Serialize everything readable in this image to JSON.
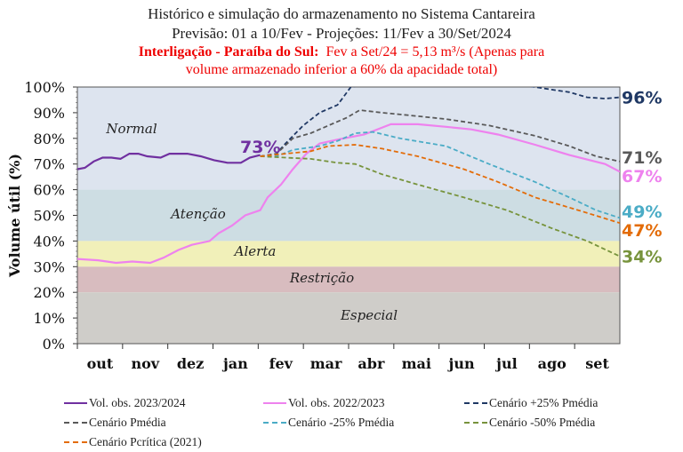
{
  "chart_data": {
    "type": "line",
    "title": "Histórico e simulação do armazenamento no Sistema Cantareira",
    "subtitle": "Previsão: 01 a 10/Fev  -  Projeções: 11/Fev a 30/Set/2024",
    "note_bold": "Interligação - Paraíba do Sul:",
    "note_text": "Fev a Set/24 = 5,13 m³/s (Apenas para",
    "note_line2": "volume armazenado inferior a 60% da apacidade total)",
    "ylabel": "Volume útil (%)",
    "xlabel": "",
    "ylim": [
      0,
      100
    ],
    "y_ticks": [
      "0%",
      "10%",
      "20%",
      "30%",
      "40%",
      "50%",
      "60%",
      "70%",
      "80%",
      "90%",
      "100%"
    ],
    "x_ticks": [
      "out",
      "nov",
      "dez",
      "jan",
      "fev",
      "mar",
      "abr",
      "mai",
      "jun",
      "jul",
      "ago",
      "set"
    ],
    "x_range": [
      "2023-10-01",
      "2024-09-30"
    ],
    "zones": [
      {
        "label": "Normal",
        "from": 60,
        "to": 100,
        "color": "#dde4ef"
      },
      {
        "label": "Atenção",
        "from": 40,
        "to": 60,
        "color": "#cddde3"
      },
      {
        "label": "Alerta",
        "from": 30,
        "to": 40,
        "color": "#f1f0b9"
      },
      {
        "label": "Restrição",
        "from": 20,
        "to": 30,
        "color": "#d8bcbf"
      },
      {
        "label": "Especial",
        "from": 0,
        "to": 20,
        "color": "#cfcdc9"
      }
    ],
    "start_label": "73%",
    "legend_position": "bottom",
    "series": [
      {
        "name": "Vol. obs. 2023/2024",
        "color": "#7030a0",
        "dash": false,
        "end_label": "",
        "points": [
          [
            "2023-10-01",
            68
          ],
          [
            "2023-10-06",
            68.5
          ],
          [
            "2023-10-12",
            71
          ],
          [
            "2023-10-18",
            72.5
          ],
          [
            "2023-10-24",
            72.5
          ],
          [
            "2023-10-30",
            72
          ],
          [
            "2023-11-05",
            74
          ],
          [
            "2023-11-11",
            74
          ],
          [
            "2023-11-17",
            73
          ],
          [
            "2023-11-26",
            72.5
          ],
          [
            "2023-12-02",
            74
          ],
          [
            "2023-12-14",
            74
          ],
          [
            "2023-12-23",
            73
          ],
          [
            "2024-01-01",
            71.5
          ],
          [
            "2024-01-10",
            70.5
          ],
          [
            "2024-01-19",
            70.5
          ],
          [
            "2024-01-25",
            72.5
          ],
          [
            "2024-02-01",
            73.5
          ]
        ]
      },
      {
        "name": "Vol. obs. 2022/2023",
        "color": "#ee82ee",
        "dash": false,
        "end_label": "67%",
        "points": [
          [
            "2023-10-01",
            33
          ],
          [
            "2023-10-15",
            32.5
          ],
          [
            "2023-10-27",
            31.5
          ],
          [
            "2023-11-07",
            32
          ],
          [
            "2023-11-19",
            31.5
          ],
          [
            "2023-11-28",
            33.5
          ],
          [
            "2023-12-08",
            36.5
          ],
          [
            "2023-12-17",
            38.5
          ],
          [
            "2023-12-29",
            40
          ],
          [
            "2024-01-04",
            43
          ],
          [
            "2024-01-13",
            46
          ],
          [
            "2024-01-22",
            50
          ],
          [
            "2024-02-01",
            52
          ],
          [
            "2024-02-06",
            57
          ],
          [
            "2024-02-15",
            62
          ],
          [
            "2024-02-23",
            68
          ],
          [
            "2024-03-03",
            74
          ],
          [
            "2024-03-12",
            78
          ],
          [
            "2024-03-24",
            79.5
          ],
          [
            "2024-04-11",
            81.5
          ],
          [
            "2024-04-29",
            85.5
          ],
          [
            "2024-05-17",
            85.5
          ],
          [
            "2024-06-05",
            84.5
          ],
          [
            "2024-06-22",
            83.5
          ],
          [
            "2024-07-10",
            81.5
          ],
          [
            "2024-08-04",
            77.5
          ],
          [
            "2024-08-27",
            73.5
          ],
          [
            "2024-09-20",
            70
          ],
          [
            "2024-09-30",
            67
          ]
        ]
      },
      {
        "name": "Cenário +25% Pmédia",
        "color": "#1f3864",
        "dash": true,
        "end_label": "96%",
        "points": [
          [
            "2024-02-01",
            73
          ],
          [
            "2024-02-12",
            74
          ],
          [
            "2024-02-18",
            78
          ],
          [
            "2024-03-01",
            85
          ],
          [
            "2024-03-12",
            90
          ],
          [
            "2024-03-24",
            93
          ],
          [
            "2024-04-02",
            100
          ],
          [
            "2024-05-15",
            104
          ],
          [
            "2024-07-01",
            103
          ],
          [
            "2024-08-04",
            100
          ],
          [
            "2024-08-15",
            99
          ],
          [
            "2024-08-27",
            98
          ],
          [
            "2024-09-08",
            96
          ],
          [
            "2024-09-20",
            95.5
          ],
          [
            "2024-09-30",
            96
          ]
        ]
      },
      {
        "name": "Cenário Pmédia",
        "color": "#595959",
        "dash": true,
        "end_label": "71%",
        "points": [
          [
            "2024-02-01",
            73
          ],
          [
            "2024-02-12",
            74
          ],
          [
            "2024-02-23",
            80
          ],
          [
            "2024-03-06",
            82
          ],
          [
            "2024-03-18",
            85
          ],
          [
            "2024-03-30",
            88
          ],
          [
            "2024-04-08",
            91
          ],
          [
            "2024-04-23",
            90
          ],
          [
            "2024-05-11",
            89
          ],
          [
            "2024-06-05",
            87.5
          ],
          [
            "2024-07-04",
            85
          ],
          [
            "2024-08-04",
            81
          ],
          [
            "2024-08-27",
            77
          ],
          [
            "2024-09-14",
            73
          ],
          [
            "2024-09-30",
            71
          ]
        ]
      },
      {
        "name": "Cenário -25% Pmédia",
        "color": "#4bacc6",
        "dash": true,
        "end_label": "49%",
        "points": [
          [
            "2024-02-01",
            73
          ],
          [
            "2024-02-12",
            73
          ],
          [
            "2024-02-23",
            75.5
          ],
          [
            "2024-03-12",
            77
          ],
          [
            "2024-03-24",
            79
          ],
          [
            "2024-04-05",
            82
          ],
          [
            "2024-04-17",
            82.5
          ],
          [
            "2024-05-05",
            80
          ],
          [
            "2024-06-05",
            77
          ],
          [
            "2024-07-04",
            70
          ],
          [
            "2024-08-04",
            63
          ],
          [
            "2024-08-27",
            57
          ],
          [
            "2024-09-14",
            52
          ],
          [
            "2024-09-30",
            49
          ]
        ]
      },
      {
        "name": "Cenário -50% Pmédia",
        "color": "#77933c",
        "dash": true,
        "end_label": "34%",
        "points": [
          [
            "2024-02-01",
            73
          ],
          [
            "2024-02-18",
            72.5
          ],
          [
            "2024-03-06",
            72
          ],
          [
            "2024-03-24",
            70.5
          ],
          [
            "2024-04-05",
            70
          ],
          [
            "2024-04-23",
            66
          ],
          [
            "2024-05-17",
            62
          ],
          [
            "2024-06-17",
            57
          ],
          [
            "2024-07-16",
            52
          ],
          [
            "2024-08-15",
            45
          ],
          [
            "2024-09-08",
            40
          ],
          [
            "2024-09-30",
            34
          ]
        ]
      },
      {
        "name": "Cenário Pcrítica (2021)",
        "color": "#e36c09",
        "dash": true,
        "end_label": "47%",
        "points": [
          [
            "2024-02-01",
            73
          ],
          [
            "2024-02-18",
            74
          ],
          [
            "2024-03-06",
            75
          ],
          [
            "2024-03-18",
            77
          ],
          [
            "2024-04-05",
            77.5
          ],
          [
            "2024-04-23",
            76
          ],
          [
            "2024-05-17",
            73
          ],
          [
            "2024-06-17",
            68
          ],
          [
            "2024-07-10",
            63
          ],
          [
            "2024-08-04",
            57
          ],
          [
            "2024-09-02",
            52
          ],
          [
            "2024-09-30",
            47
          ]
        ]
      }
    ]
  }
}
